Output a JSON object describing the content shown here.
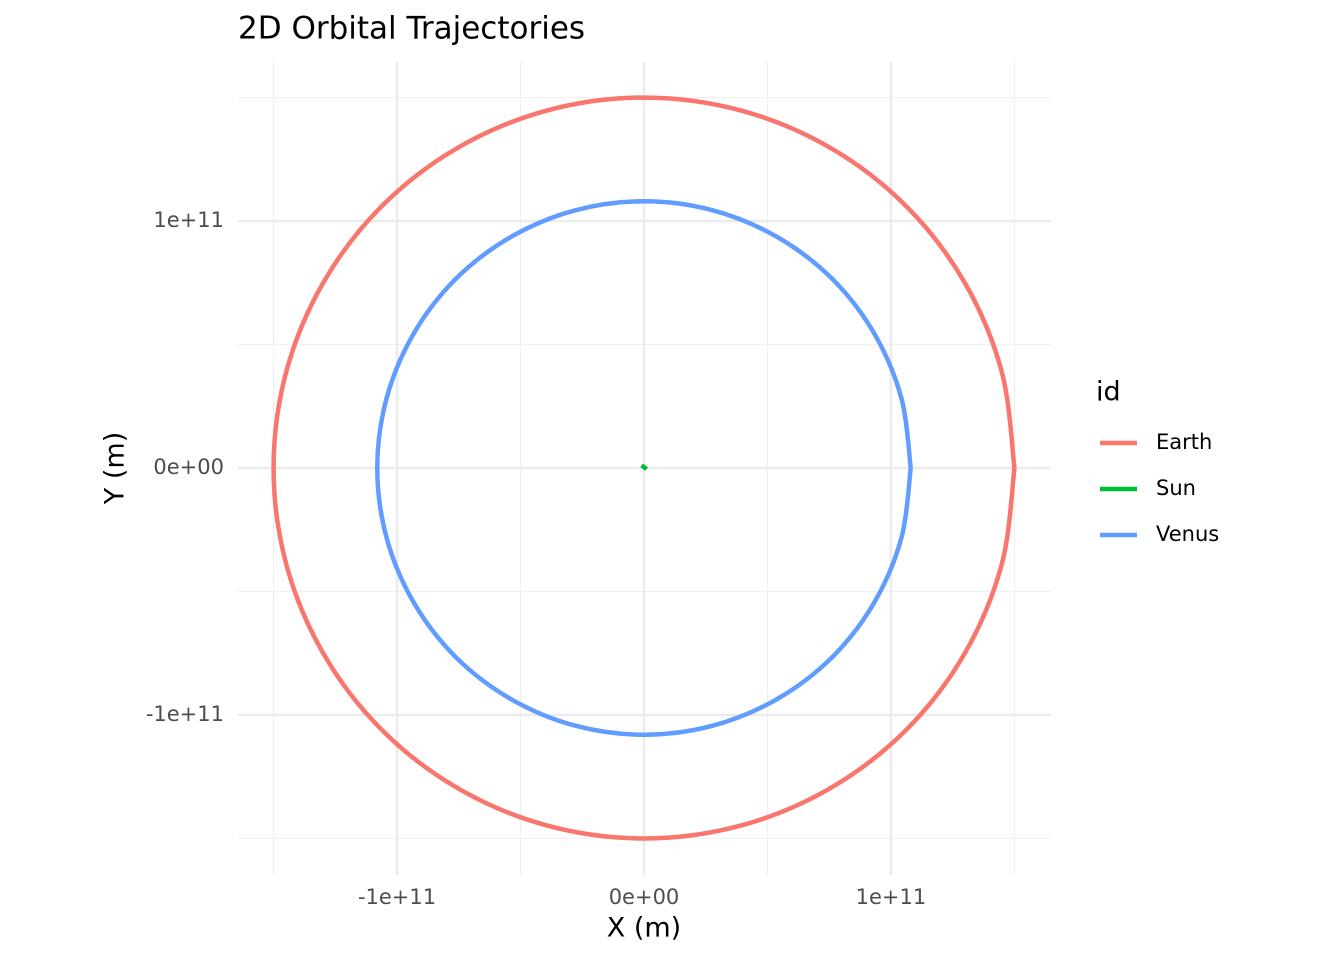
{
  "chart_data": {
    "type": "line",
    "title": "2D Orbital Trajectories",
    "x_label": "X (m)",
    "y_label": "Y (m)",
    "legend_title": "id",
    "legend": "right",
    "grid": true,
    "xlim": [
      -164400000000.0,
      164800000000.0
    ],
    "ylim": [
      -164800000000.0,
      164400000000.0
    ],
    "xticks": [
      {
        "value": -100000000000.0,
        "label": "-1e+11"
      },
      {
        "value": 0,
        "label": "0e+00"
      },
      {
        "value": 100000000000.0,
        "label": "1e+11"
      }
    ],
    "yticks": [
      {
        "value": -100000000000.0,
        "label": "-1e+11"
      },
      {
        "value": 0,
        "label": "0e+00"
      },
      {
        "value": 100000000000.0,
        "label": "1e+11"
      }
    ],
    "x_minor_ticks": [
      -150000000000.0,
      -50000000000.0,
      50000000000.0,
      150000000000.0
    ],
    "y_minor_ticks": [
      -150000000000.0,
      -50000000000.0,
      50000000000.0,
      150000000000.0
    ],
    "series": [
      {
        "name": "Earth",
        "color": "#f8766d",
        "x": [
          150000000000.0,
          144900000000.0,
          129900000000.0,
          106100000000.0,
          75000000000.0,
          38800000000.0,
          0,
          -38800000000.0,
          -75000000000.0,
          -106100000000.0,
          -129900000000.0,
          -144900000000.0,
          -150000000000.0,
          -144900000000.0,
          -129900000000.0,
          -106100000000.0,
          -75000000000.0,
          -38800000000.0,
          0,
          38800000000.0,
          75000000000.0,
          106100000000.0,
          129900000000.0,
          144900000000.0,
          150000000000.0
        ],
        "values": [
          0,
          38800000000.0,
          75000000000.0,
          106100000000.0,
          129900000000.0,
          144900000000.0,
          150000000000.0,
          144900000000.0,
          129900000000.0,
          106100000000.0,
          75000000000.0,
          38800000000.0,
          0,
          -38800000000.0,
          -75000000000.0,
          -106100000000.0,
          -129900000000.0,
          -144900000000.0,
          -150000000000.0,
          -144900000000.0,
          -129900000000.0,
          -106100000000.0,
          -75000000000.0,
          -38800000000.0,
          0
        ]
      },
      {
        "name": "Sun",
        "color": "#00ba38",
        "x": [
          -1000000000.0,
          500000000.0,
          1000000000.0
        ],
        "values": [
          1000000000.0,
          0,
          -500000000.0
        ]
      },
      {
        "name": "Venus",
        "color": "#619cff",
        "x": [
          108000000000.0,
          104300000000.0,
          93500000000.0,
          76400000000.0,
          54000000000.0,
          28000000000.0,
          0,
          -28000000000.0,
          -54000000000.0,
          -76400000000.0,
          -93500000000.0,
          -104300000000.0,
          -108000000000.0,
          -104300000000.0,
          -93500000000.0,
          -76400000000.0,
          -54000000000.0,
          -28000000000.0,
          0,
          28000000000.0,
          54000000000.0,
          76400000000.0,
          93500000000.0,
          104300000000.0,
          108000000000.0
        ],
        "values": [
          0,
          28000000000.0,
          54000000000.0,
          76400000000.0,
          93500000000.0,
          104300000000.0,
          108000000000.0,
          104300000000.0,
          93500000000.0,
          76400000000.0,
          54000000000.0,
          28000000000.0,
          0,
          -28000000000.0,
          -54000000000.0,
          -76400000000.0,
          -93500000000.0,
          -104300000000.0,
          -108000000000.0,
          -104300000000.0,
          -93500000000.0,
          -76400000000.0,
          -54000000000.0,
          -28000000000.0,
          0
        ]
      }
    ]
  }
}
